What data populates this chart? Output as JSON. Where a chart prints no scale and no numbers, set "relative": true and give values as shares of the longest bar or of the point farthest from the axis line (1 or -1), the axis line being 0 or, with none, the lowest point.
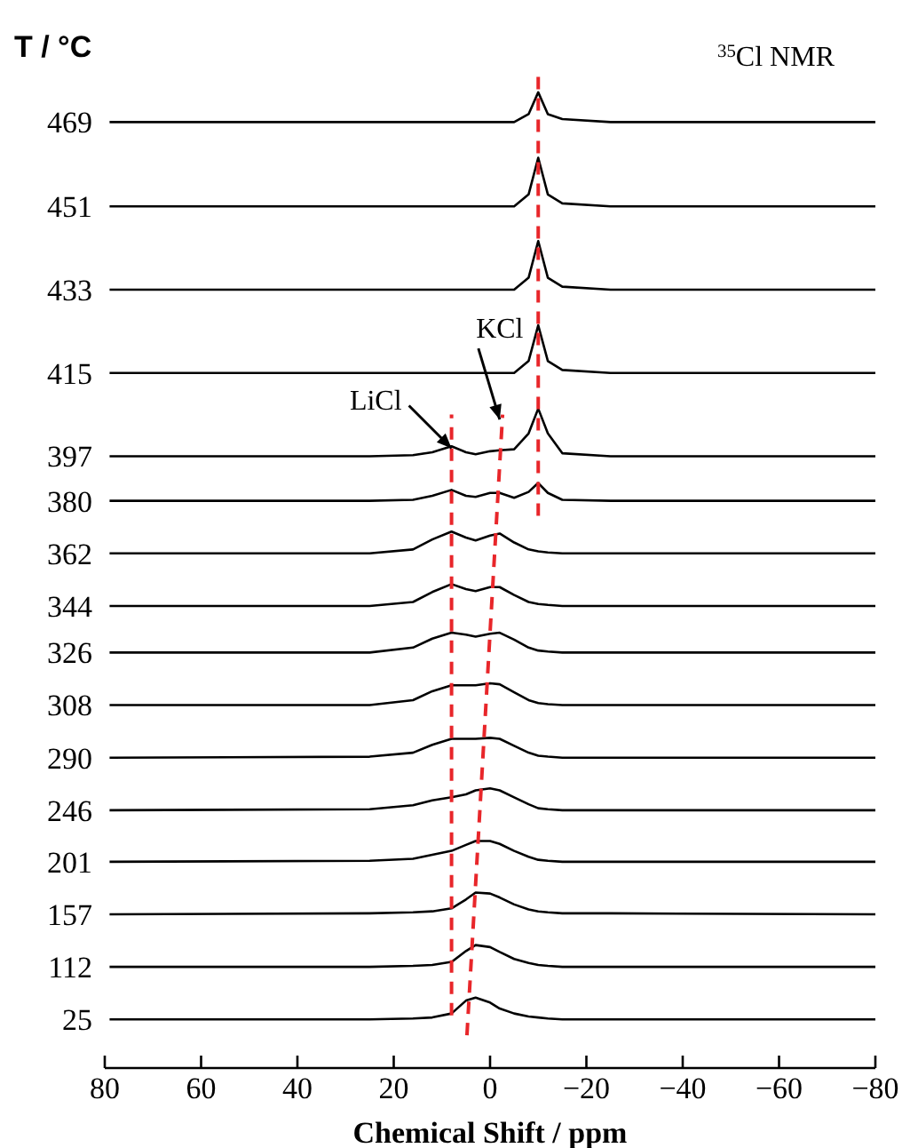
{
  "chart_data": {
    "type": "line",
    "relative": true,
    "legend_title": "T / °C",
    "xlabel": "Chemical Shift / ppm",
    "x": [
      79,
      25,
      16,
      12,
      8,
      5,
      3,
      0,
      -2,
      -5,
      -8,
      -10,
      -12,
      -15,
      -25,
      -80
    ],
    "xlim": [
      80,
      -80
    ],
    "xticks": [
      80,
      60,
      40,
      20,
      0,
      {
        "value": -20,
        "label": "−20"
      },
      {
        "value": -40,
        "label": "−40"
      },
      {
        "value": -60,
        "label": "−60"
      },
      {
        "value": -80,
        "label": "−80"
      }
    ],
    "annotations": [
      "$^{35}$Cl NMR",
      {
        "text": "LiCl",
        "x": 8,
        "y": 0.625
      },
      {
        "text": "KCl",
        "x": -2,
        "y": 0.654
      }
    ],
    "series": [
      {
        "name": "469",
        "color": "#000000",
        "values": [
          0.954,
          0.954,
          0.954,
          0.954,
          0.954,
          0.954,
          0.954,
          0.954,
          0.954,
          0.954,
          0.962,
          0.984,
          0.962,
          0.957,
          0.954,
          0.954
        ]
      },
      {
        "name": "451",
        "color": "#000000",
        "values": [
          0.869,
          0.869,
          0.869,
          0.869,
          0.869,
          0.869,
          0.869,
          0.869,
          0.869,
          0.869,
          0.881,
          0.918,
          0.881,
          0.872,
          0.869,
          0.869
        ]
      },
      {
        "name": "433",
        "color": "#000000",
        "values": [
          0.785,
          0.785,
          0.785,
          0.785,
          0.785,
          0.785,
          0.785,
          0.785,
          0.785,
          0.785,
          0.797,
          0.834,
          0.797,
          0.788,
          0.785,
          0.785
        ]
      },
      {
        "name": "415",
        "color": "#000000",
        "values": [
          0.701,
          0.701,
          0.701,
          0.701,
          0.701,
          0.701,
          0.701,
          0.701,
          0.701,
          0.701,
          0.713,
          0.749,
          0.713,
          0.704,
          0.701,
          0.701
        ]
      },
      {
        "name": "397",
        "color": "#000000",
        "values": [
          0.617,
          0.617,
          0.618,
          0.621,
          0.627,
          0.621,
          0.619,
          0.622,
          0.623,
          0.624,
          0.64,
          0.665,
          0.64,
          0.62,
          0.617,
          0.617
        ]
      },
      {
        "name": "380",
        "color": "#000000",
        "values": [
          0.572,
          0.572,
          0.573,
          0.577,
          0.583,
          0.577,
          0.576,
          0.58,
          0.58,
          0.575,
          0.581,
          0.59,
          0.58,
          0.573,
          0.572,
          0.572
        ]
      },
      {
        "name": "362",
        "color": "#000000",
        "values": [
          0.519,
          0.519,
          0.523,
          0.533,
          0.541,
          0.535,
          0.532,
          0.537,
          0.539,
          0.53,
          0.523,
          0.521,
          0.52,
          0.519,
          0.519,
          0.519
        ]
      },
      {
        "name": "344",
        "color": "#000000",
        "values": [
          0.466,
          0.466,
          0.47,
          0.48,
          0.488,
          0.483,
          0.481,
          0.485,
          0.485,
          0.477,
          0.47,
          0.468,
          0.467,
          0.466,
          0.466,
          0.466
        ]
      },
      {
        "name": "326",
        "color": "#000000",
        "values": [
          0.419,
          0.419,
          0.424,
          0.433,
          0.439,
          0.437,
          0.435,
          0.438,
          0.439,
          0.432,
          0.424,
          0.421,
          0.42,
          0.419,
          0.419,
          0.419
        ]
      },
      {
        "name": "308",
        "color": "#000000",
        "values": [
          0.366,
          0.366,
          0.371,
          0.38,
          0.386,
          0.386,
          0.386,
          0.388,
          0.387,
          0.379,
          0.371,
          0.368,
          0.367,
          0.366,
          0.366,
          0.366
        ]
      },
      {
        "name": "290",
        "color": "#000000",
        "values": [
          0.313,
          0.314,
          0.318,
          0.326,
          0.332,
          0.332,
          0.332,
          0.333,
          0.332,
          0.325,
          0.318,
          0.315,
          0.314,
          0.313,
          0.313,
          0.313
        ]
      },
      {
        "name": "246",
        "color": "#000000",
        "values": [
          0.26,
          0.261,
          0.265,
          0.27,
          0.273,
          0.276,
          0.28,
          0.282,
          0.28,
          0.273,
          0.266,
          0.262,
          0.261,
          0.26,
          0.26,
          0.26
        ]
      },
      {
        "name": "201",
        "color": "#000000",
        "values": [
          0.208,
          0.209,
          0.211,
          0.215,
          0.219,
          0.225,
          0.229,
          0.229,
          0.226,
          0.219,
          0.213,
          0.21,
          0.209,
          0.208,
          0.208,
          0.208
        ]
      },
      {
        "name": "157",
        "color": "#000000",
        "values": [
          0.155,
          0.156,
          0.157,
          0.158,
          0.161,
          0.17,
          0.177,
          0.176,
          0.172,
          0.165,
          0.16,
          0.158,
          0.157,
          0.156,
          0.156,
          0.155
        ]
      },
      {
        "name": "112",
        "color": "#000000",
        "values": [
          0.102,
          0.102,
          0.103,
          0.104,
          0.107,
          0.118,
          0.124,
          0.122,
          0.117,
          0.11,
          0.106,
          0.104,
          0.103,
          0.102,
          0.102,
          0.102
        ]
      },
      {
        "name": "25",
        "color": "#000000",
        "values": [
          0.049,
          0.049,
          0.05,
          0.051,
          0.055,
          0.068,
          0.071,
          0.066,
          0.06,
          0.055,
          0.052,
          0.051,
          0.05,
          0.049,
          0.049,
          0.049
        ]
      },
      {
        "type": "line",
        "color": "#e8262a",
        "line_style": "dashed",
        "x": [
          8,
          8
        ],
        "values": [
          0.053,
          0.659
        ]
      },
      {
        "type": "line",
        "color": "#e8262a",
        "line_style": "dashed",
        "x": [
          4.8,
          -2.6
        ],
        "values": [
          0.033,
          0.659
        ]
      },
      {
        "type": "line",
        "color": "#e8262a",
        "line_style": "dashed",
        "x": [
          -10,
          -10
        ],
        "values": [
          0.557,
          1.0
        ]
      }
    ]
  }
}
